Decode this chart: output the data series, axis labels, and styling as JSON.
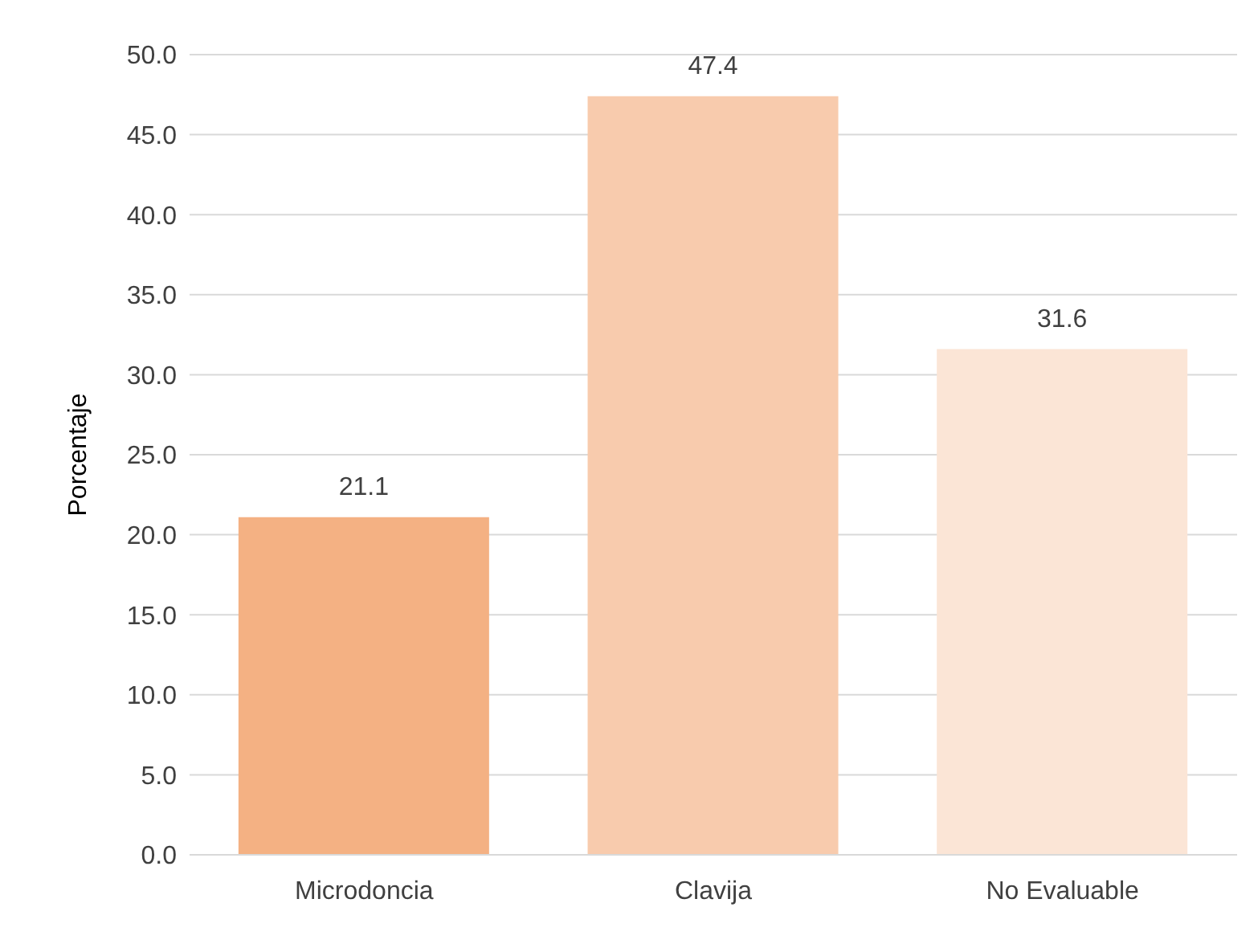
{
  "chart_data": {
    "type": "bar",
    "ylabel": "Porcentaje",
    "categories": [
      "Microdoncia",
      "Clavija",
      "No Evaluable"
    ],
    "values": [
      21.1,
      47.4,
      31.6
    ],
    "colors": [
      "#f4b183",
      "#f8cbad",
      "#fbe5d6"
    ],
    "ylim": [
      0,
      50
    ],
    "yticks": [
      {
        "value": 0,
        "label": "0.0"
      },
      {
        "value": 5,
        "label": "5.0"
      },
      {
        "value": 10,
        "label": "10.0"
      },
      {
        "value": 15,
        "label": "15.0"
      },
      {
        "value": 20,
        "label": "20.0"
      },
      {
        "value": 25,
        "label": "25.0"
      },
      {
        "value": 30,
        "label": "30.0"
      },
      {
        "value": 35,
        "label": "35.0"
      },
      {
        "value": 40,
        "label": "40.0"
      },
      {
        "value": 45,
        "label": "45.0"
      },
      {
        "value": 50,
        "label": "50.0"
      }
    ],
    "grid": "y",
    "data_labels": true,
    "legend": false
  }
}
